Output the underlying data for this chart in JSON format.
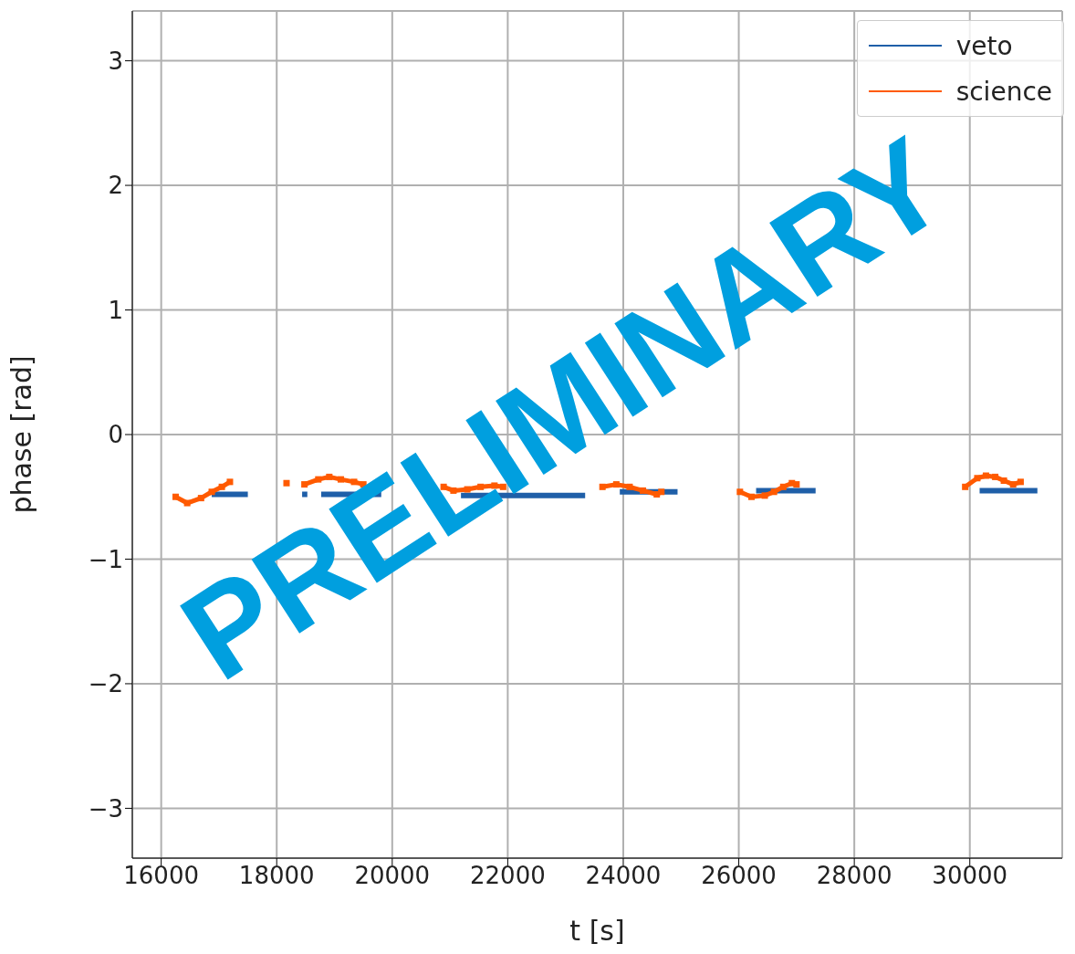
{
  "chart_data": {
    "type": "line",
    "xlabel": "t [s]",
    "ylabel": "phase [rad]",
    "xlim": [
      15500,
      31600
    ],
    "ylim": [
      -3.4,
      3.4
    ],
    "xticks": [
      16000,
      18000,
      20000,
      22000,
      24000,
      26000,
      28000,
      30000
    ],
    "yticks": [
      {
        "value": -3,
        "label": "−3"
      },
      {
        "value": -2,
        "label": "−2"
      },
      {
        "value": -1,
        "label": "−1"
      },
      0,
      1,
      2,
      3
    ],
    "grid": true,
    "legend": "top right",
    "annotations": [
      "PRELIMINARY"
    ],
    "series": [
      {
        "name": "veto",
        "color": "#1f5fa8",
        "x": [
          16875,
          17500,
          17600,
          18440,
          18530,
          18600,
          18770,
          19810,
          20000,
          21190,
          23340,
          23500,
          23940,
          24940,
          25200,
          26300,
          27330,
          28000,
          30170,
          31170
        ],
        "values": [
          -0.48,
          -0.48,
          null,
          -0.48,
          -0.48,
          null,
          -0.48,
          -0.48,
          null,
          -0.49,
          -0.49,
          null,
          -0.46,
          -0.46,
          null,
          -0.45,
          -0.45,
          null,
          -0.45,
          -0.45
        ]
      },
      {
        "name": "science",
        "color": "#ff5a00",
        "marker": "square",
        "x": [
          16250,
          16450,
          16690,
          16875,
          17050,
          17190,
          17700,
          18170,
          18300,
          18480,
          18720,
          18910,
          19110,
          19340,
          19500,
          20000,
          20890,
          21060,
          21300,
          21530,
          21770,
          21920,
          22500,
          23640,
          23880,
          24110,
          24340,
          24580,
          24660,
          25300,
          26020,
          26220,
          26450,
          26610,
          26770,
          26920,
          27000,
          28000,
          29920,
          30130,
          30280,
          30440,
          30590,
          30750,
          30880
        ],
        "values": [
          -0.5,
          -0.55,
          -0.51,
          -0.46,
          -0.42,
          -0.38,
          null,
          -0.39,
          null,
          -0.4,
          -0.36,
          -0.34,
          -0.36,
          -0.38,
          -0.4,
          null,
          -0.42,
          -0.45,
          -0.44,
          -0.42,
          -0.41,
          -0.42,
          null,
          -0.42,
          -0.4,
          -0.42,
          -0.45,
          -0.48,
          -0.46,
          null,
          -0.46,
          -0.5,
          -0.49,
          -0.46,
          -0.42,
          -0.39,
          -0.4,
          null,
          -0.42,
          -0.35,
          -0.33,
          -0.34,
          -0.37,
          -0.4,
          -0.38
        ]
      }
    ]
  }
}
